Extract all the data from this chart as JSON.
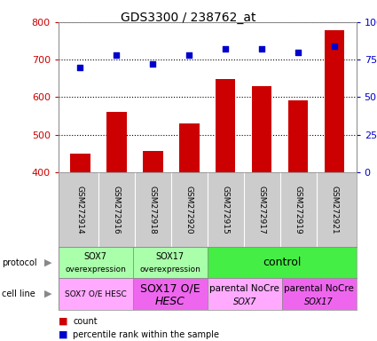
{
  "title": "GDS3300 / 238762_at",
  "samples": [
    "GSM272914",
    "GSM272916",
    "GSM272918",
    "GSM272920",
    "GSM272915",
    "GSM272917",
    "GSM272919",
    "GSM272921"
  ],
  "counts": [
    450,
    560,
    456,
    530,
    648,
    630,
    592,
    778
  ],
  "percentiles": [
    70,
    78,
    72,
    78,
    82,
    82,
    80,
    84
  ],
  "ylim_left": [
    400,
    800
  ],
  "ylim_right": [
    0,
    100
  ],
  "yticks_left": [
    400,
    500,
    600,
    700,
    800
  ],
  "yticks_right": [
    0,
    25,
    50,
    75,
    100
  ],
  "bar_color": "#cc0000",
  "dot_color": "#0000cc",
  "protocol_groups": [
    {
      "label": "SOX7\noverexpression",
      "start": 0,
      "end": 2,
      "color": "#aaffaa"
    },
    {
      "label": "SOX17\noverexpression",
      "start": 2,
      "end": 4,
      "color": "#aaffaa"
    },
    {
      "label": "control",
      "start": 4,
      "end": 8,
      "color": "#44ee44"
    }
  ],
  "cellline_groups": [
    {
      "label_main": "SOX7 O/E HESC",
      "label_sub": "",
      "start": 0,
      "end": 2,
      "color": "#ffaaff",
      "fontsize_main": 6.5,
      "fontsize_sub": 6
    },
    {
      "label_main": "SOX17 O/E",
      "label_sub": "HESC",
      "start": 2,
      "end": 4,
      "color": "#ee66ee",
      "fontsize_main": 9,
      "fontsize_sub": 9
    },
    {
      "label_main": "parental NoCre",
      "label_sub": "SOX7",
      "start": 4,
      "end": 6,
      "color": "#ffaaff",
      "fontsize_main": 7.5,
      "fontsize_sub": 7
    },
    {
      "label_main": "parental NoCre",
      "label_sub": "SOX17",
      "start": 6,
      "end": 8,
      "color": "#ee66ee",
      "fontsize_main": 7.5,
      "fontsize_sub": 7
    }
  ],
  "fig_width": 4.25,
  "fig_height": 3.84,
  "dpi": 100
}
